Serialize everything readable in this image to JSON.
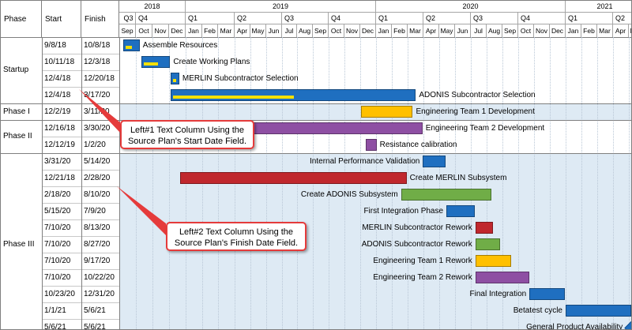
{
  "columns": {
    "phase": "Phase",
    "start": "Start",
    "finish": "Finish"
  },
  "timeline": {
    "years": [
      "2018",
      "2019",
      "2020",
      "2021"
    ],
    "quarters": [
      "Q3",
      "Q4",
      "Q1",
      "Q2",
      "Q3",
      "Q4",
      "Q1",
      "Q2",
      "Q3",
      "Q4",
      "Q1",
      "Q2"
    ],
    "months": [
      "Sep",
      "Oct",
      "Nov",
      "Dec",
      "Jan",
      "Feb",
      "Mar",
      "Apr",
      "May",
      "Jun",
      "Jul",
      "Aug",
      "Sep",
      "Oct",
      "Nov",
      "Dec",
      "Jan",
      "Feb",
      "Mar",
      "Apr",
      "May",
      "Jun",
      "Jul",
      "Aug",
      "Sep",
      "Oct",
      "Nov",
      "Dec",
      "Jan",
      "Feb",
      "Mar",
      "Apr",
      "May"
    ]
  },
  "phases": [
    {
      "name": "Startup",
      "band": "white"
    },
    {
      "name": "Phase I",
      "band": "blue"
    },
    {
      "name": "Phase II",
      "band": "white"
    },
    {
      "name": "Phase III",
      "band": "blue"
    }
  ],
  "tasks": [
    {
      "phase": 0,
      "start": "9/8/18",
      "finish": "10/8/18",
      "label": "Assemble Resources",
      "color": "#1f6fc0",
      "progress": 0.5,
      "bar_start": "2018-09-08",
      "bar_end": "2018-10-08",
      "label_side": "right"
    },
    {
      "phase": 0,
      "start": "10/11/18",
      "finish": "12/3/18",
      "label": "Create Working Plans",
      "color": "#1f6fc0",
      "progress": 0.55,
      "bar_start": "2018-10-11",
      "bar_end": "2018-12-03",
      "label_side": "right"
    },
    {
      "phase": 0,
      "start": "12/4/18",
      "finish": "12/20/18",
      "label": "MERLIN Subcontractor Selection",
      "color": "#1f6fc0",
      "progress": 0.6,
      "bar_start": "2018-12-04",
      "bar_end": "2018-12-20",
      "label_side": "right"
    },
    {
      "phase": 0,
      "start": "12/4/18",
      "finish": "3/17/20",
      "label": "ADONIS Subcontractor Selection",
      "color": "#1f6fc0",
      "progress": 0.5,
      "bar_start": "2018-12-04",
      "bar_end": "2020-03-17",
      "label_side": "right"
    },
    {
      "phase": 1,
      "start": "12/2/19",
      "finish": "3/11/20",
      "label": "Engineering Team 1 Development",
      "color": "#ffc000",
      "progress": 0,
      "bar_start": "2019-12-02",
      "bar_end": "2020-03-11",
      "label_side": "right"
    },
    {
      "phase": 2,
      "start": "12/16/18",
      "finish": "3/30/20",
      "label": "Engineering Team 2 Development",
      "color": "#8e4fa3",
      "progress": 0,
      "bar_start": "2018-12-16",
      "bar_end": "2020-03-30",
      "label_side": "right"
    },
    {
      "phase": 2,
      "start": "12/12/19",
      "finish": "1/2/20",
      "label": "Resistance calibration",
      "color": "#8e4fa3",
      "progress": 0,
      "bar_start": "2019-12-12",
      "bar_end": "2020-01-02",
      "label_side": "right"
    },
    {
      "phase": 3,
      "start": "3/31/20",
      "finish": "5/14/20",
      "label": "Internal Performance Validation",
      "color": "#1f6fc0",
      "progress": 0,
      "bar_start": "2020-03-31",
      "bar_end": "2020-05-14",
      "label_side": "left"
    },
    {
      "phase": 3,
      "start": "12/21/18",
      "finish": "2/28/20",
      "label": "Create MERLIN Subsystem",
      "color": "#c0272d",
      "progress": 0,
      "bar_start": "2018-12-21",
      "bar_end": "2020-02-28",
      "label_side": "right"
    },
    {
      "phase": 3,
      "start": "2/18/20",
      "finish": "8/10/20",
      "label": "Create ADONIS Subsystem",
      "color": "#70ad47",
      "progress": 0,
      "bar_start": "2020-02-18",
      "bar_end": "2020-08-10",
      "label_side": "left"
    },
    {
      "phase": 3,
      "start": "5/15/20",
      "finish": "7/9/20",
      "label": "First Integration Phase",
      "color": "#1f6fc0",
      "progress": 0,
      "bar_start": "2020-05-15",
      "bar_end": "2020-07-09",
      "label_side": "left"
    },
    {
      "phase": 3,
      "start": "7/10/20",
      "finish": "8/13/20",
      "label": "MERLIN Subcontractor Rework",
      "color": "#c0272d",
      "progress": 0,
      "bar_start": "2020-07-10",
      "bar_end": "2020-08-13",
      "label_side": "left"
    },
    {
      "phase": 3,
      "start": "7/10/20",
      "finish": "8/27/20",
      "label": "ADONIS Subcontractor Rework",
      "color": "#70ad47",
      "progress": 0,
      "bar_start": "2020-07-10",
      "bar_end": "2020-08-27",
      "label_side": "left"
    },
    {
      "phase": 3,
      "start": "7/10/20",
      "finish": "9/17/20",
      "label": "Engineering Team 1 Rework",
      "color": "#ffc000",
      "progress": 0,
      "bar_start": "2020-07-10",
      "bar_end": "2020-09-17",
      "label_side": "left"
    },
    {
      "phase": 3,
      "start": "7/10/20",
      "finish": "10/22/20",
      "label": "Engineering Team 2 Rework",
      "color": "#8e4fa3",
      "progress": 0,
      "bar_start": "2020-07-10",
      "bar_end": "2020-10-22",
      "label_side": "left"
    },
    {
      "phase": 3,
      "start": "10/23/20",
      "finish": "12/31/20",
      "label": "Final Integration",
      "color": "#1f6fc0",
      "progress": 0,
      "bar_start": "2020-10-23",
      "bar_end": "2020-12-31",
      "label_side": "left"
    },
    {
      "phase": 3,
      "start": "1/1/21",
      "finish": "5/6/21",
      "label": "Betatest cycle",
      "color": "#1f6fc0",
      "progress": 0,
      "bar_start": "2021-01-01",
      "bar_end": "2021-05-06",
      "label_side": "left"
    },
    {
      "phase": 3,
      "start": "5/6/21",
      "finish": "5/6/21",
      "label": "General Product Availability",
      "color": "#1f6fc0",
      "progress": 0,
      "bar_start": "2021-05-06",
      "bar_end": "2021-05-06",
      "label_side": "left",
      "milestone": true
    }
  ],
  "callouts": [
    {
      "text": "Left#1 Text Column Using the Source Plan's Start Date Field."
    },
    {
      "text": "Left#2 Text Column Using the Source Plan's Finish Date Field."
    }
  ],
  "colors": {
    "band_blue": "#deeaf4",
    "progress": "#f3e000",
    "callout_border": "#e53b3b"
  }
}
